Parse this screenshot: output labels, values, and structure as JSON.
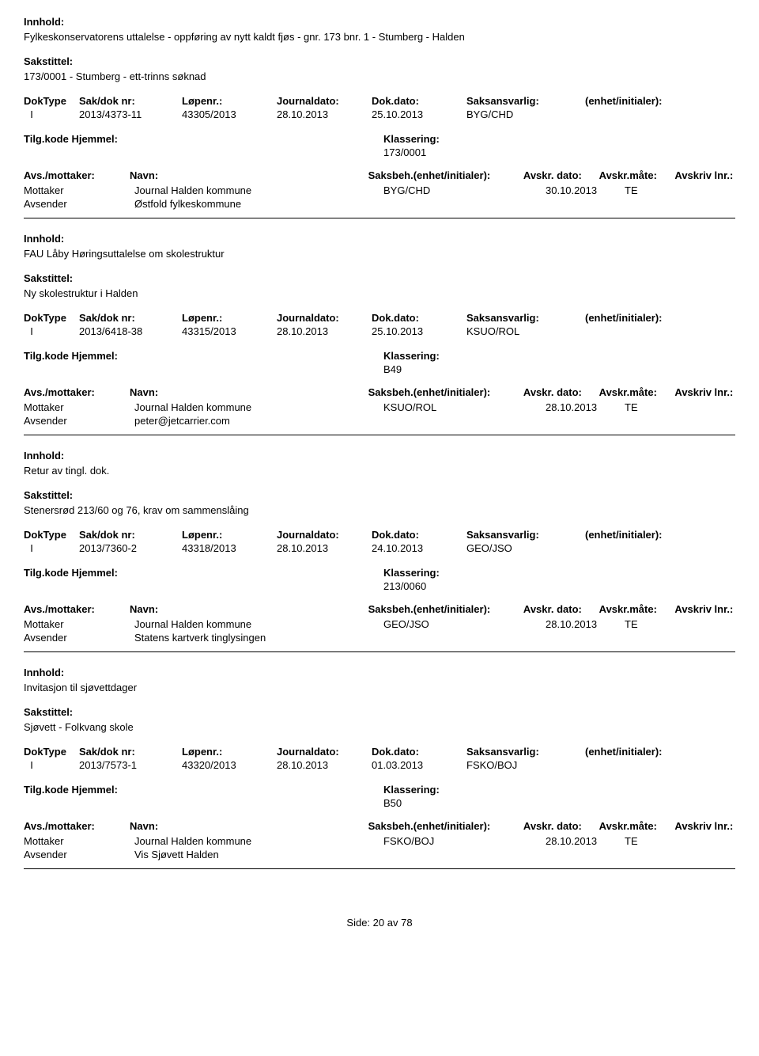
{
  "labels": {
    "innhold": "Innhold:",
    "sakstittel": "Sakstittel:",
    "doktype": "DokType",
    "sakdok": "Sak/dok nr:",
    "lopenr": "Løpenr.:",
    "journaldato": "Journaldato:",
    "dokdato": "Dok.dato:",
    "saksansvarlig": "Saksansvarlig:",
    "enhet": "(enhet/initialer):",
    "tilgkode": "Tilg.kode",
    "hjemmel": "Hjemmel:",
    "klassering": "Klassering:",
    "avsmottaker": "Avs./mottaker:",
    "navn": "Navn:",
    "saksbeh": "Saksbeh.",
    "saksbeh_enhet": "(enhet/initialer):",
    "avskr_dato": "Avskr. dato:",
    "avskr_mate": "Avskr.måte:",
    "avskriv_lnr": "Avskriv lnr.:",
    "mottaker": "Mottaker",
    "avsender": "Avsender"
  },
  "records": [
    {
      "innhold": "Fylkeskonservatorens uttalelse - oppføring av nytt kaldt fjøs - gnr. 173 bnr. 1 - Stumberg - Halden",
      "sakstittel": "173/0001 - Stumberg - ett-trinns søknad",
      "doktype": "I",
      "sakdok": "2013/4373-11",
      "lopenr": "43305/2013",
      "journaldato": "28.10.2013",
      "dokdato": "25.10.2013",
      "saksansvarlig": "BYG/CHD",
      "klassering": "173/0001",
      "show_avs_header": false,
      "parties": [
        {
          "role": "Mottaker",
          "name": "Journal Halden kommune",
          "saksbeh": "BYG/CHD",
          "dato": "30.10.2013",
          "mate": "TE"
        },
        {
          "role": "Avsender",
          "name": "Østfold fylkeskommune",
          "saksbeh": "",
          "dato": "",
          "mate": ""
        }
      ]
    },
    {
      "innhold": "FAU Låby Høringsuttalelse om skolestruktur",
      "sakstittel": "Ny skolestruktur i Halden",
      "doktype": "I",
      "sakdok": "2013/6418-38",
      "lopenr": "43315/2013",
      "journaldato": "28.10.2013",
      "dokdato": "25.10.2013",
      "saksansvarlig": "KSUO/ROL",
      "klassering": "B49",
      "show_avs_header": false,
      "parties": [
        {
          "role": "Mottaker",
          "name": "Journal Halden kommune",
          "saksbeh": "KSUO/ROL",
          "dato": "28.10.2013",
          "mate": "TE"
        },
        {
          "role": "Avsender",
          "name": "peter@jetcarrier.com",
          "saksbeh": "",
          "dato": "",
          "mate": ""
        }
      ]
    },
    {
      "innhold": "Retur av tingl. dok.",
      "sakstittel": "Stenersrød 213/60 og 76, krav om sammenslåing",
      "doktype": "I",
      "sakdok": "2013/7360-2",
      "lopenr": "43318/2013",
      "journaldato": "28.10.2013",
      "dokdato": "24.10.2013",
      "saksansvarlig": "GEO/JSO",
      "klassering": "213/0060",
      "show_avs_header": true,
      "parties": [
        {
          "role": "Mottaker",
          "name": "Journal Halden kommune",
          "saksbeh": "GEO/JSO",
          "dato": "28.10.2013",
          "mate": "TE"
        },
        {
          "role": "Avsender",
          "name": "Statens kartverk tinglysingen",
          "saksbeh": "",
          "dato": "",
          "mate": ""
        }
      ]
    },
    {
      "innhold": "Invitasjon til sjøvettdager",
      "sakstittel": "Sjøvett - Folkvang skole",
      "doktype": "I",
      "sakdok": "2013/7573-1",
      "lopenr": "43320/2013",
      "journaldato": "28.10.2013",
      "dokdato": "01.03.2013",
      "saksansvarlig": "FSKO/BOJ",
      "klassering": "B50",
      "show_avs_header": true,
      "parties": [
        {
          "role": "Mottaker",
          "name": "Journal Halden kommune",
          "saksbeh": "FSKO/BOJ",
          "dato": "28.10.2013",
          "mate": "TE"
        },
        {
          "role": "Avsender",
          "name": "Vis Sjøvett Halden",
          "saksbeh": "",
          "dato": "",
          "mate": ""
        }
      ]
    }
  ],
  "footer": {
    "prefix": "Side:",
    "page": "20",
    "of": "av",
    "total": "78"
  }
}
